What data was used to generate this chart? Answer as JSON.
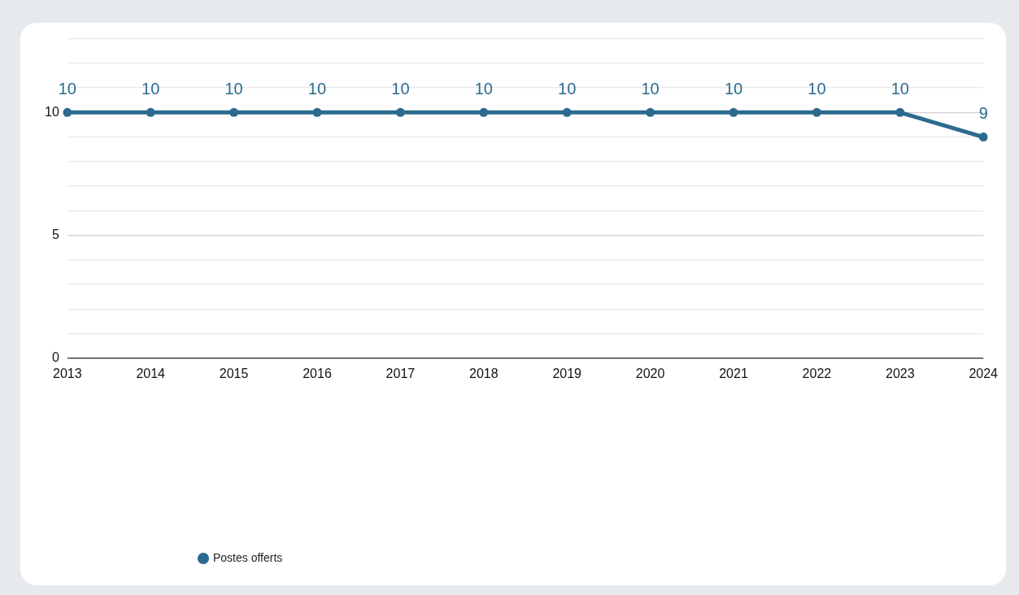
{
  "chart_data": {
    "type": "line",
    "categories": [
      "2013",
      "2014",
      "2015",
      "2016",
      "2017",
      "2018",
      "2019",
      "2020",
      "2021",
      "2022",
      "2023",
      "2024"
    ],
    "series": [
      {
        "name": "Postes offerts",
        "color": "#2a6b8f",
        "values": [
          10,
          10,
          10,
          10,
          10,
          10,
          10,
          10,
          10,
          10,
          10,
          9
        ]
      }
    ],
    "ylim": [
      0,
      13
    ],
    "yticks": [
      0,
      {
        "value": 1,
        "label": null
      },
      {
        "value": 2,
        "label": null
      },
      {
        "value": 3,
        "label": null
      },
      {
        "value": 4,
        "label": null
      },
      5,
      {
        "value": 6,
        "label": null
      },
      {
        "value": 7,
        "label": null
      },
      {
        "value": 8,
        "label": null
      },
      {
        "value": 9,
        "label": null
      },
      10,
      {
        "value": 11,
        "label": null
      },
      {
        "value": 12,
        "label": null
      },
      {
        "value": 13,
        "label": null
      }
    ],
    "grid": "y",
    "legend": "bottom left",
    "marker": "circle",
    "line_style": "solid",
    "data_labels": true
  }
}
